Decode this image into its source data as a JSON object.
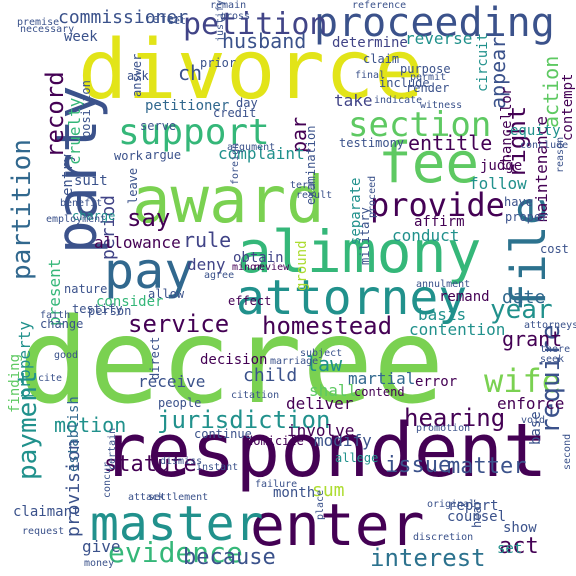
{
  "palette": {
    "purple": "#440154",
    "indigo": "#3b528b",
    "blue": "#2c728e",
    "teal": "#21918c",
    "green": "#28ae80",
    "lime": "#5ec962",
    "yellowgreen": "#addc30",
    "yellow": "#e2e418",
    "light": "#b5c4ce"
  },
  "words": [
    {
      "text": "decree",
      "color": "#7ad151"
    },
    {
      "text": "respondent",
      "color": "#440154"
    },
    {
      "text": "divorce",
      "color": "#e2e418"
    },
    {
      "text": "award",
      "color": "#7ad151"
    },
    {
      "text": "alimony",
      "color": "#35b779"
    },
    {
      "text": "party",
      "color": "#3b528b"
    },
    {
      "text": "enter",
      "color": "#440154"
    },
    {
      "text": "master",
      "color": "#21918c"
    },
    {
      "text": "fee",
      "color": "#5ec962"
    },
    {
      "text": "pay",
      "color": "#31688e"
    },
    {
      "text": "attorney",
      "color": "#21918c"
    },
    {
      "text": "file",
      "color": "#2c728e"
    },
    {
      "text": "proceeding",
      "color": "#3b528b"
    },
    {
      "text": "petition",
      "color": "#414487"
    },
    {
      "text": "support",
      "color": "#35b779"
    },
    {
      "text": "section",
      "color": "#5ec962"
    },
    {
      "text": "partition",
      "color": "#31688e"
    },
    {
      "text": "provide",
      "color": "#440154"
    },
    {
      "text": "payment",
      "color": "#21918c"
    },
    {
      "text": "evidence",
      "color": "#35b779"
    },
    {
      "text": "wife",
      "color": "#7ad151"
    },
    {
      "text": "require",
      "color": "#3b528b"
    },
    {
      "text": "jurisdiction",
      "color": "#21918c"
    },
    {
      "text": "hearing",
      "color": "#440154"
    },
    {
      "text": "service",
      "color": "#440154"
    },
    {
      "text": "homestead",
      "color": "#440154"
    },
    {
      "text": "interest",
      "color": "#2c728e"
    },
    {
      "text": "year",
      "color": "#21918c"
    },
    {
      "text": "right",
      "color": "#440154"
    },
    {
      "text": "record",
      "color": "#440154"
    },
    {
      "text": "say",
      "color": "#440154"
    },
    {
      "text": "motion",
      "color": "#21918c"
    },
    {
      "text": "statute",
      "color": "#440154"
    },
    {
      "text": "matter",
      "color": "#3b528b"
    },
    {
      "text": "issue",
      "color": "#3b528b"
    },
    {
      "text": "commissioner",
      "color": "#3b528b"
    },
    {
      "text": "husband",
      "color": "#3b528b"
    },
    {
      "text": "ch",
      "color": "#3b528b"
    },
    {
      "text": "action",
      "color": "#5ec962"
    },
    {
      "text": "property",
      "color": "#21918c"
    },
    {
      "text": "present",
      "color": "#35b779"
    },
    {
      "text": "entitle",
      "color": "#440154"
    },
    {
      "text": "rule",
      "color": "#414487"
    },
    {
      "text": "period",
      "color": "#414487"
    },
    {
      "text": "because",
      "color": "#3b528b"
    },
    {
      "text": "act",
      "color": "#440154"
    },
    {
      "text": "sum",
      "color": "#addc30"
    },
    {
      "text": "grant",
      "color": "#440154"
    },
    {
      "text": "appear",
      "color": "#3b528b"
    },
    {
      "text": "date",
      "color": "#31688e"
    },
    {
      "text": "law",
      "color": "#21918c"
    },
    {
      "text": "par",
      "color": "#440154"
    },
    {
      "text": "complaint",
      "color": "#21918c"
    },
    {
      "text": "child",
      "color": "#3b528b"
    },
    {
      "text": "conduct",
      "color": "#21918c"
    },
    {
      "text": "month",
      "color": "#3b528b"
    },
    {
      "text": "allowance",
      "color": "#440154"
    },
    {
      "text": "provision",
      "color": "#3b528b"
    },
    {
      "text": "maintenance",
      "color": "#440154"
    },
    {
      "text": "judge",
      "color": "#440154"
    },
    {
      "text": "follow",
      "color": "#21918c"
    },
    {
      "text": "equity",
      "color": "#21918c"
    },
    {
      "text": "reverse",
      "color": "#21918c"
    },
    {
      "text": "determine",
      "color": "#414487"
    },
    {
      "text": "deliver",
      "color": "#440154"
    },
    {
      "text": "modify",
      "color": "#3b528b"
    },
    {
      "text": "shall",
      "color": "#5ec962"
    },
    {
      "text": "martial",
      "color": "#31688e"
    },
    {
      "text": "involve",
      "color": "#440154"
    },
    {
      "text": "enforce",
      "color": "#440154"
    },
    {
      "text": "error",
      "color": "#440154"
    },
    {
      "text": "show",
      "color": "#3b528b"
    },
    {
      "text": "set",
      "color": "#21918c"
    },
    {
      "text": "give",
      "color": "#3b528b"
    },
    {
      "text": "receive",
      "color": "#3b528b"
    },
    {
      "text": "decision",
      "color": "#440154"
    },
    {
      "text": "contention",
      "color": "#21918c"
    },
    {
      "text": "basis",
      "color": "#21918c"
    },
    {
      "text": "remand",
      "color": "#440154"
    },
    {
      "text": "deny",
      "color": "#414487"
    },
    {
      "text": "obtain",
      "color": "#414487"
    },
    {
      "text": "suit",
      "color": "#3b528b"
    },
    {
      "text": "entry",
      "color": "#3b528b"
    },
    {
      "text": "cruelty",
      "color": "#35b779"
    },
    {
      "text": "petitioner",
      "color": "#31688e"
    },
    {
      "text": "week",
      "color": "#3b528b"
    },
    {
      "text": "examination",
      "color": "#3b528b"
    },
    {
      "text": "take",
      "color": "#414487"
    },
    {
      "text": "separate",
      "color": "#21918c"
    },
    {
      "text": "ground",
      "color": "#addc30"
    },
    {
      "text": "circuit",
      "color": "#21918c"
    },
    {
      "text": "contempt",
      "color": "#440154"
    },
    {
      "text": "chancellor",
      "color": "#440154"
    },
    {
      "text": "consider",
      "color": "#35b779"
    },
    {
      "text": "finding",
      "color": "#5ec962"
    },
    {
      "text": "affirm",
      "color": "#440154"
    },
    {
      "text": "report",
      "color": "#3b528b"
    },
    {
      "text": "counsel",
      "color": "#3b528b"
    },
    {
      "text": "base",
      "color": "#3b528b"
    },
    {
      "text": "claimant",
      "color": "#3b528b"
    },
    {
      "text": "establish",
      "color": "#31688e"
    },
    {
      "text": "day",
      "color": "#3b528b"
    },
    {
      "text": "credit",
      "color": "#3b528b"
    },
    {
      "text": "testimony",
      "color": "#3b528b"
    },
    {
      "text": "position",
      "color": "#3b528b"
    },
    {
      "text": "answer",
      "color": "#3b528b"
    },
    {
      "text": "purpose",
      "color": "#3b528b"
    },
    {
      "text": "render",
      "color": "#3b528b"
    },
    {
      "text": "include",
      "color": "#3b528b"
    },
    {
      "text": "contend",
      "color": "#440154"
    },
    {
      "text": "domicile",
      "color": "#440154"
    },
    {
      "text": "work",
      "color": "#3b528b"
    },
    {
      "text": "argue",
      "color": "#3b528b"
    },
    {
      "text": "charge",
      "color": "#21918c"
    },
    {
      "text": "serve",
      "color": "#3b528b"
    },
    {
      "text": "continue",
      "color": "#3b528b"
    },
    {
      "text": "allege",
      "color": "#21918c"
    },
    {
      "text": "hear",
      "color": "#3b528b"
    },
    {
      "text": "military",
      "color": "#3b528b"
    },
    {
      "text": "leave",
      "color": "#3b528b"
    },
    {
      "text": "cost",
      "color": "#3b528b"
    },
    {
      "text": "subject",
      "color": "#3b528b"
    },
    {
      "text": "people",
      "color": "#3b528b"
    },
    {
      "text": "direct",
      "color": "#3b528b"
    },
    {
      "text": "change",
      "color": "#3b528b"
    },
    {
      "text": "effect",
      "color": "#440154"
    },
    {
      "text": "testify",
      "color": "#3b528b"
    },
    {
      "text": "person",
      "color": "#3b528b"
    },
    {
      "text": "allow",
      "color": "#3b528b"
    },
    {
      "text": "nature",
      "color": "#3b528b"
    },
    {
      "text": "have",
      "color": "#3b528b"
    },
    {
      "text": "proper",
      "color": "#3b528b"
    },
    {
      "text": "refer",
      "color": "#3b528b"
    },
    {
      "text": "prior",
      "color": "#3b528b"
    },
    {
      "text": "ask",
      "color": "#3b528b"
    },
    {
      "text": "claim",
      "color": "#3b528b"
    },
    {
      "text": "final",
      "color": "#3b528b"
    },
    {
      "text": "permit",
      "color": "#3b528b"
    },
    {
      "text": "conclude",
      "color": "#3b528b"
    },
    {
      "text": "reason",
      "color": "#3b528b"
    },
    {
      "text": "result",
      "color": "#3b528b"
    },
    {
      "text": "term",
      "color": "#3b528b"
    },
    {
      "text": "agree",
      "color": "#3b528b"
    },
    {
      "text": "minor",
      "color": "#440154"
    },
    {
      "text": "review",
      "color": "#440154"
    },
    {
      "text": "foreign",
      "color": "#3b528b"
    },
    {
      "text": "benefit",
      "color": "#3b528b"
    },
    {
      "text": "employment",
      "color": "#3b528b"
    },
    {
      "text": "good",
      "color": "#3b528b"
    },
    {
      "text": "cite",
      "color": "#3b528b"
    },
    {
      "text": "faith",
      "color": "#3b528b"
    },
    {
      "text": "premise",
      "color": "#3b528b"
    },
    {
      "text": "gross",
      "color": "#3b528b"
    },
    {
      "text": "remain",
      "color": "#3b528b"
    },
    {
      "text": "reference",
      "color": "#3b528b"
    },
    {
      "text": "necessary",
      "color": "#3b528b"
    },
    {
      "text": "set",
      "color": "#3b528b"
    },
    {
      "text": "witness",
      "color": "#3b528b"
    },
    {
      "text": "indicate",
      "color": "#3b528b"
    },
    {
      "text": "argument",
      "color": "#3b528b"
    },
    {
      "text": "proceed",
      "color": "#3b528b"
    },
    {
      "text": "place",
      "color": "#3b528b"
    },
    {
      "text": "promotion",
      "color": "#3b528b"
    },
    {
      "text": "second",
      "color": "#3b528b"
    },
    {
      "text": "void",
      "color": "#3b528b"
    },
    {
      "text": "original",
      "color": "#3b528b"
    },
    {
      "text": "failure",
      "color": "#3b528b"
    },
    {
      "text": "instant",
      "color": "#3b528b"
    },
    {
      "text": "attack",
      "color": "#3b528b"
    },
    {
      "text": "settlement",
      "color": "#3b528b"
    },
    {
      "text": "request",
      "color": "#3b528b"
    },
    {
      "text": "money",
      "color": "#3b528b"
    },
    {
      "text": "discretion",
      "color": "#3b528b"
    },
    {
      "text": "concur",
      "color": "#3b528b"
    },
    {
      "text": "citation",
      "color": "#3b528b"
    },
    {
      "text": "justify",
      "color": "#3b528b"
    },
    {
      "text": "marriage",
      "color": "#3b528b"
    },
    {
      "text": "certain",
      "color": "#3b528b"
    },
    {
      "text": "dismiss",
      "color": "#3b528b"
    },
    {
      "text": "attorneys",
      "color": "#3b528b"
    },
    {
      "text": "annulment",
      "color": "#3b528b"
    },
    {
      "text": "seek",
      "color": "#3b528b"
    },
    {
      "text": "there",
      "color": "#3b528b"
    }
  ]
}
